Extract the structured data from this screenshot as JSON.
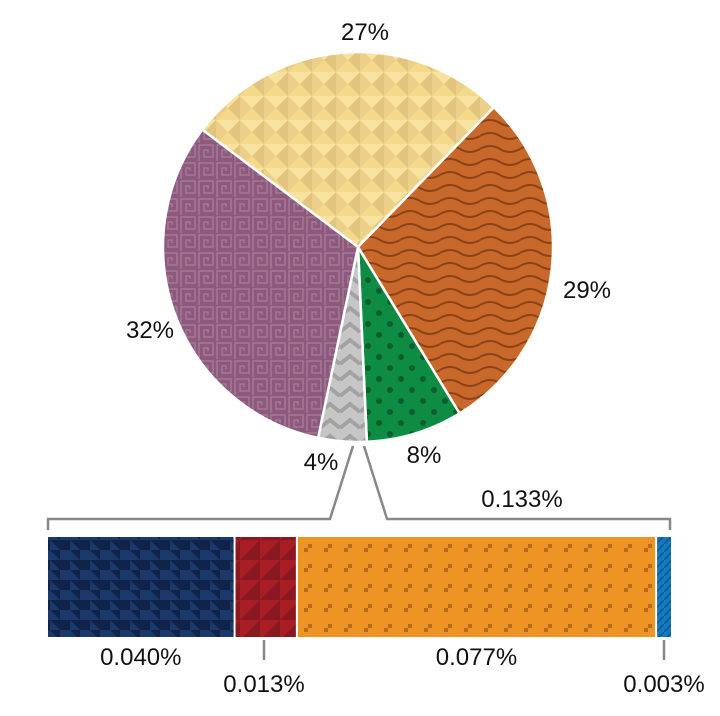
{
  "chart_data": {
    "type": "pie",
    "variant": "bar-of-pie",
    "pie": {
      "slices": [
        {
          "label": "27%",
          "value": 27,
          "color": "#f5d98b",
          "pattern": "pyramids"
        },
        {
          "label": "29%",
          "value": 29,
          "color": "#c8692b",
          "pattern": "waves"
        },
        {
          "label": "8%",
          "value": 8,
          "color": "#0e8c44",
          "pattern": "dots"
        },
        {
          "label": "4%",
          "value": 4,
          "color": "#bdbdbd",
          "pattern": "chevron"
        },
        {
          "label": "32%",
          "value": 32,
          "color": "#8b5a7c",
          "pattern": "greek-key"
        }
      ],
      "exploded_slice": "4%"
    },
    "bar": {
      "total_label": "0.133%",
      "segments": [
        {
          "label": "0.040%",
          "value": 0.04,
          "color": "#1b3a6b",
          "pattern": "houndstooth"
        },
        {
          "label": "0.013%",
          "value": 0.013,
          "color": "#a81e24",
          "pattern": "triangles"
        },
        {
          "label": "0.077%",
          "value": 0.077,
          "color": "#ee9424",
          "pattern": "steps"
        },
        {
          "label": "0.003%",
          "value": 0.003,
          "color": "#1479c0",
          "pattern": "diagonal-stripes"
        }
      ]
    },
    "legend": "none",
    "grid": false
  }
}
